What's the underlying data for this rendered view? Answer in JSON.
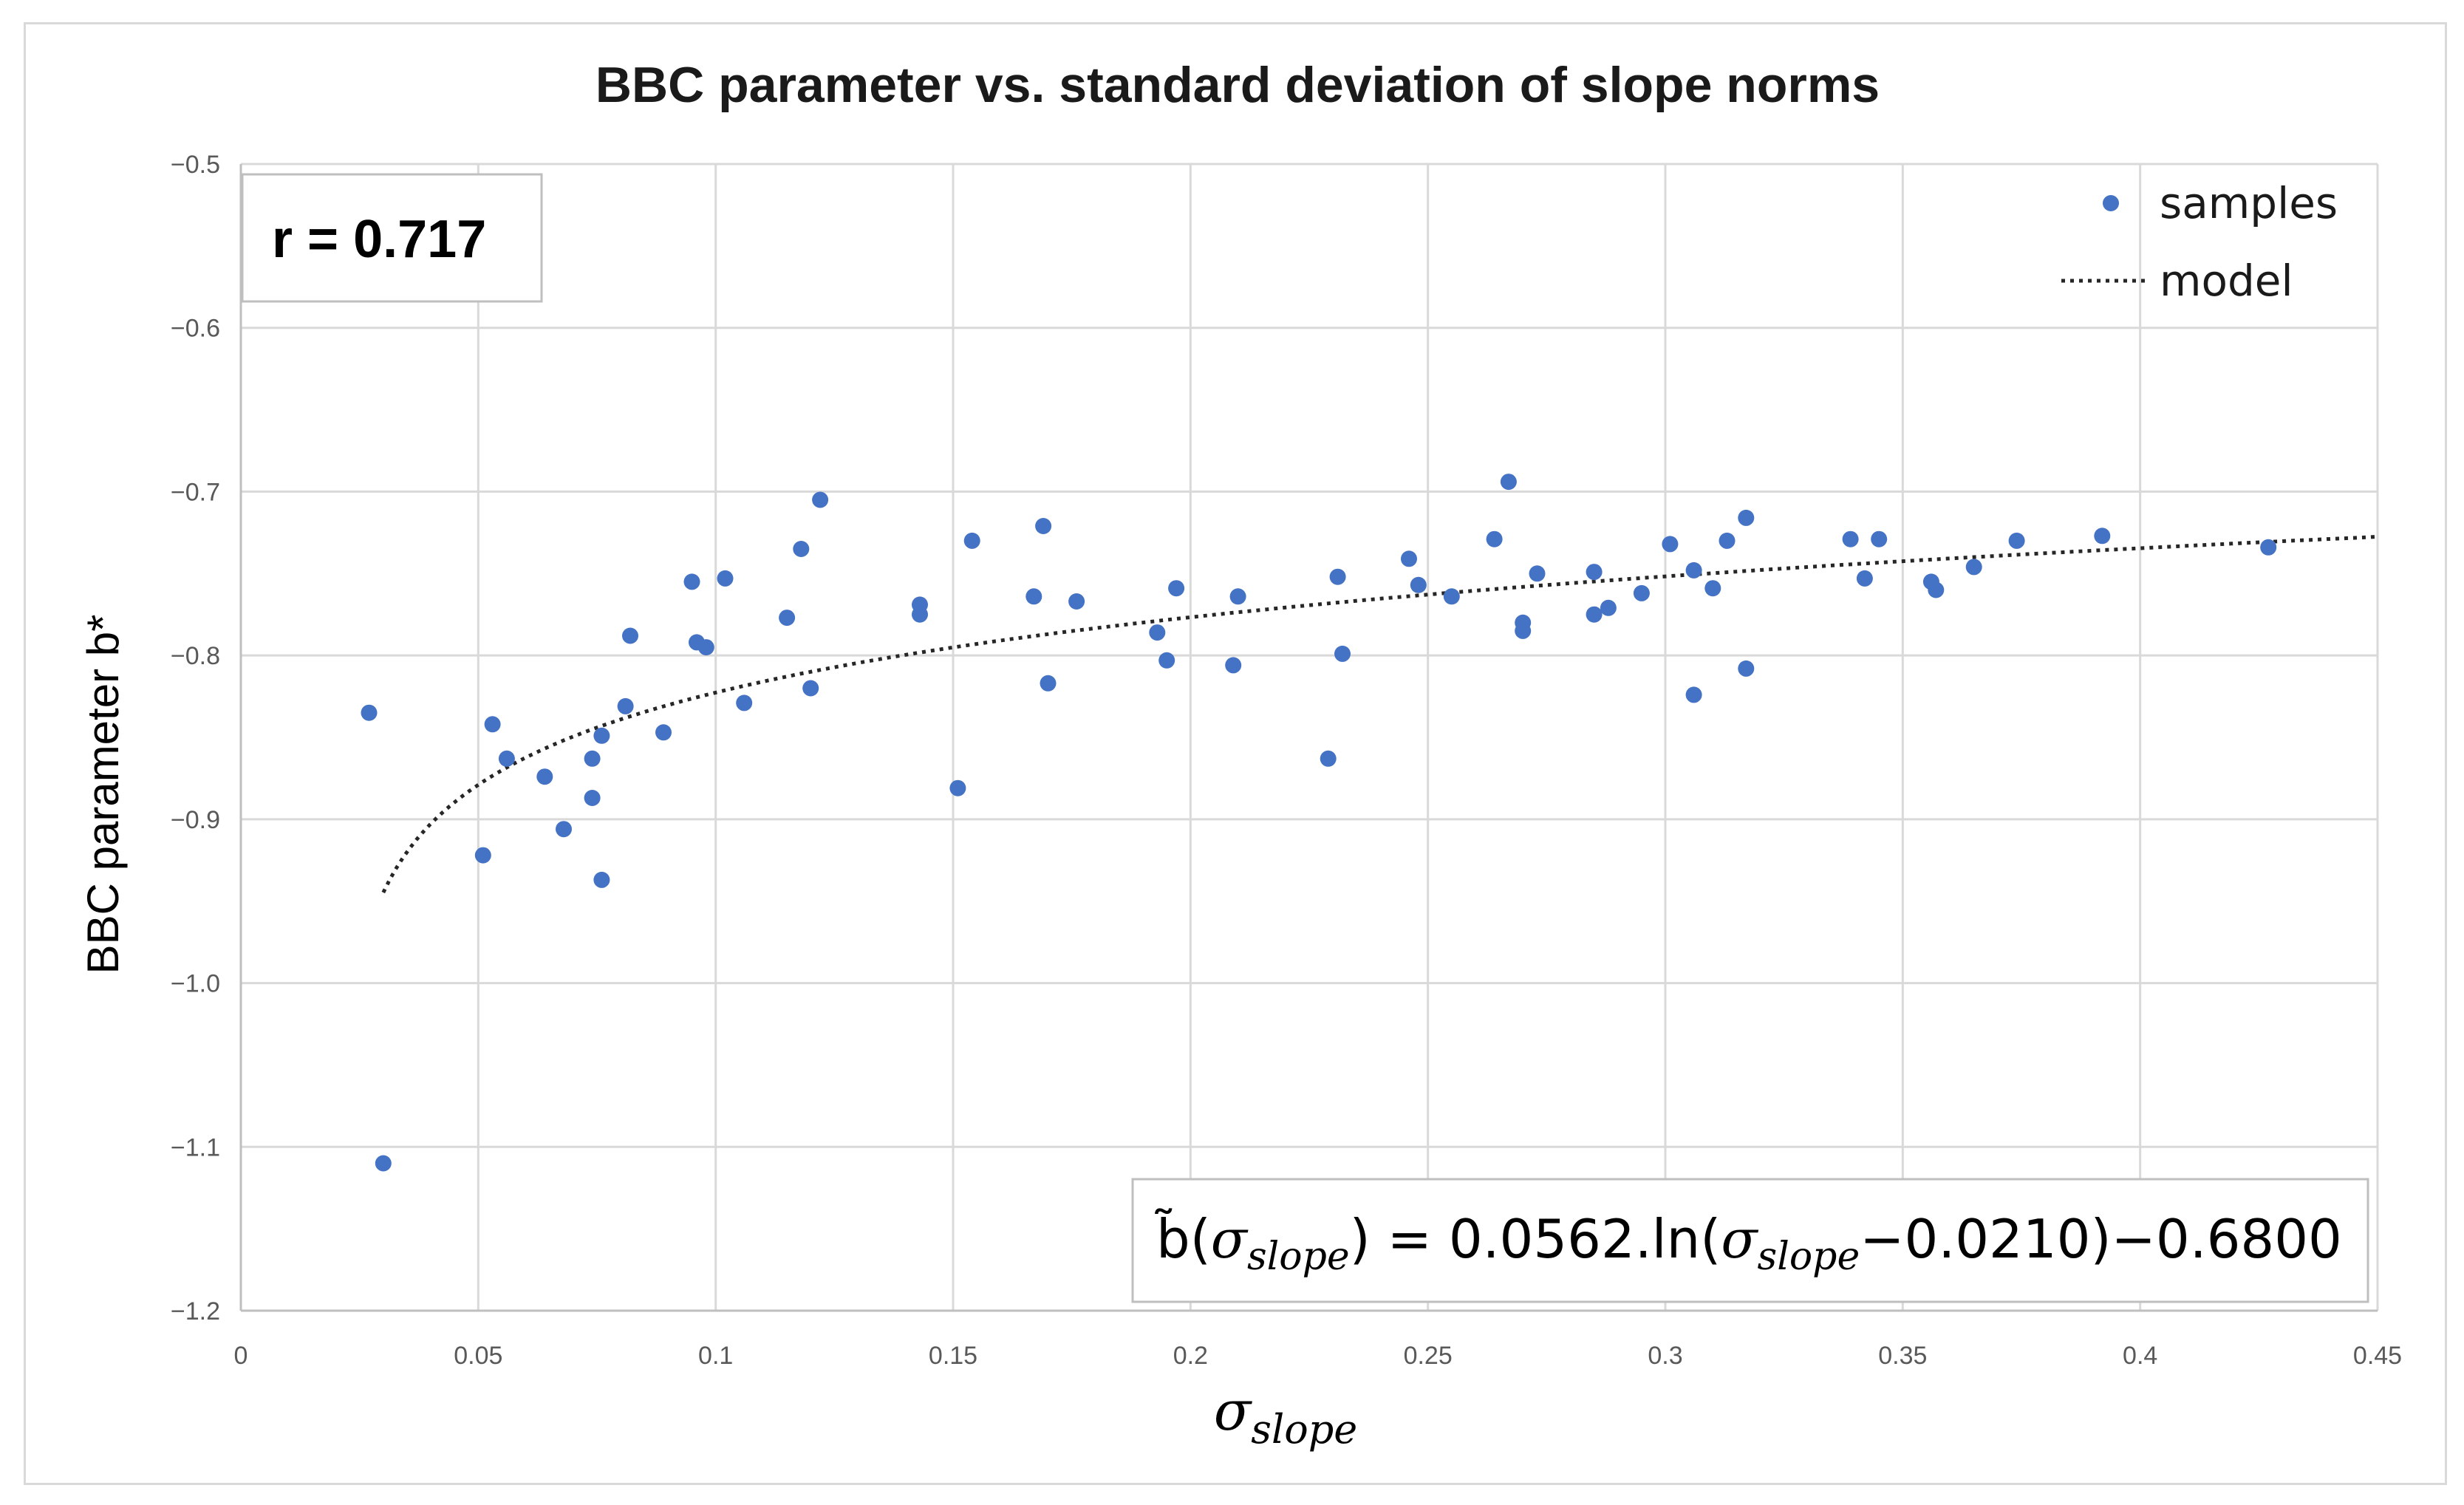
{
  "chart_data": {
    "type": "scatter",
    "title": "BBC parameter vs. standard deviation of slope norms",
    "xlabel": {
      "symbol": "σ",
      "subscript": "slope"
    },
    "ylabel": "BBC parameter b*",
    "xlim": [
      0,
      0.45
    ],
    "ylim": [
      -1.2,
      -0.5
    ],
    "x_ticks": [
      "0",
      "0.05",
      "0.1",
      "0.15",
      "0.2",
      "0.25",
      "0.3",
      "0.35",
      "0.4",
      "0.45"
    ],
    "y_ticks": [
      "−0.5",
      "−0.6",
      "−0.7",
      "−0.8",
      "−0.9",
      "−1.0",
      "−1.1",
      "−1.2"
    ],
    "grid": true,
    "legend_position": "top-right",
    "colors": {
      "samples": "#4472c4",
      "model": "#262626",
      "grid": "#d9d9d9"
    },
    "series": [
      {
        "name": "samples",
        "kind": "points",
        "points": [
          [
            0.027,
            -0.835
          ],
          [
            0.03,
            -1.11
          ],
          [
            0.051,
            -0.922
          ],
          [
            0.053,
            -0.842
          ],
          [
            0.056,
            -0.863
          ],
          [
            0.064,
            -0.874
          ],
          [
            0.068,
            -0.906
          ],
          [
            0.074,
            -0.863
          ],
          [
            0.074,
            -0.887
          ],
          [
            0.076,
            -0.849
          ],
          [
            0.076,
            -0.937
          ],
          [
            0.081,
            -0.831
          ],
          [
            0.082,
            -0.788
          ],
          [
            0.089,
            -0.847
          ],
          [
            0.095,
            -0.755
          ],
          [
            0.096,
            -0.792
          ],
          [
            0.098,
            -0.795
          ],
          [
            0.102,
            -0.753
          ],
          [
            0.106,
            -0.829
          ],
          [
            0.115,
            -0.777
          ],
          [
            0.118,
            -0.735
          ],
          [
            0.12,
            -0.82
          ],
          [
            0.122,
            -0.705
          ],
          [
            0.143,
            -0.769
          ],
          [
            0.143,
            -0.775
          ],
          [
            0.151,
            -0.881
          ],
          [
            0.154,
            -0.73
          ],
          [
            0.167,
            -0.764
          ],
          [
            0.169,
            -0.721
          ],
          [
            0.17,
            -0.817
          ],
          [
            0.176,
            -0.767
          ],
          [
            0.193,
            -0.786
          ],
          [
            0.195,
            -0.803
          ],
          [
            0.197,
            -0.759
          ],
          [
            0.209,
            -0.806
          ],
          [
            0.21,
            -0.764
          ],
          [
            0.229,
            -0.863
          ],
          [
            0.231,
            -0.752
          ],
          [
            0.232,
            -0.799
          ],
          [
            0.246,
            -0.741
          ],
          [
            0.248,
            -0.757
          ],
          [
            0.255,
            -0.764
          ],
          [
            0.264,
            -0.729
          ],
          [
            0.267,
            -0.694
          ],
          [
            0.27,
            -0.78
          ],
          [
            0.27,
            -0.785
          ],
          [
            0.273,
            -0.75
          ],
          [
            0.285,
            -0.749
          ],
          [
            0.285,
            -0.775
          ],
          [
            0.288,
            -0.771
          ],
          [
            0.295,
            -0.762
          ],
          [
            0.301,
            -0.732
          ],
          [
            0.306,
            -0.824
          ],
          [
            0.306,
            -0.748
          ],
          [
            0.31,
            -0.759
          ],
          [
            0.313,
            -0.73
          ],
          [
            0.317,
            -0.716
          ],
          [
            0.317,
            -0.808
          ],
          [
            0.339,
            -0.729
          ],
          [
            0.342,
            -0.753
          ],
          [
            0.345,
            -0.729
          ],
          [
            0.356,
            -0.755
          ],
          [
            0.357,
            -0.76
          ],
          [
            0.365,
            -0.746
          ],
          [
            0.374,
            -0.73
          ],
          [
            0.392,
            -0.727
          ],
          [
            0.427,
            -0.734
          ]
        ]
      },
      {
        "name": "model",
        "kind": "dotted-line",
        "equation": {
          "a": 0.0562,
          "c": 0.021,
          "d": -0.68
        },
        "x_range": [
          0.03,
          0.45
        ]
      }
    ],
    "annotations": {
      "r_box": "r = 0.717",
      "equation": {
        "lhs": "b̃(",
        "sub": "slope",
        "mid": ") = 0.0562.ln(",
        "tail": "−0.0210)−0.6800",
        "sym": "σ"
      }
    }
  }
}
